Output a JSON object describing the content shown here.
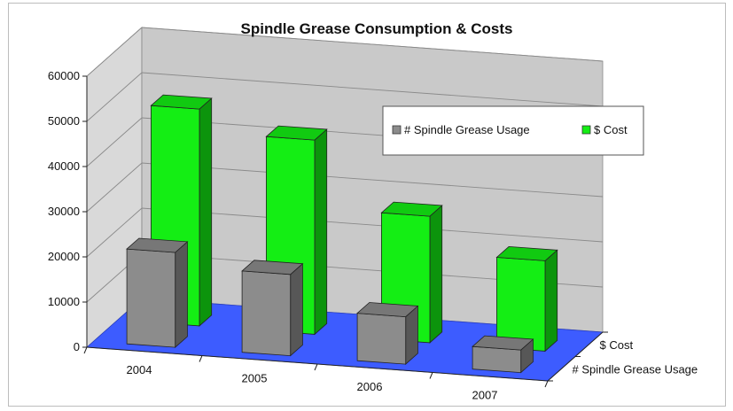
{
  "chart_data": {
    "type": "bar",
    "title": "Spindle Grease Consumption & Costs",
    "categories": [
      "2004",
      "2005",
      "2006",
      "2007"
    ],
    "series": [
      {
        "name": "# Spindle Grease Usage",
        "values": [
          21000,
          18000,
          10500,
          5000
        ]
      },
      {
        "name": "$ Cost",
        "values": [
          48000,
          43000,
          28000,
          20000
        ]
      }
    ],
    "ylim": [
      0,
      60000
    ],
    "yticks": [
      "0",
      "10000",
      "20000",
      "30000",
      "40000",
      "50000",
      "60000"
    ],
    "depth_labels": [
      "$ Cost",
      "# Spindle Grease Usage"
    ],
    "legend": {
      "position": "top-right",
      "items": [
        "# Spindle Grease Usage",
        "$ Cost"
      ]
    },
    "grid": true,
    "colors": {
      "usage": "#8c8c8c",
      "cost": "#14ee14",
      "floor": "#3d5cff",
      "wall": "#c9c9c9"
    }
  }
}
